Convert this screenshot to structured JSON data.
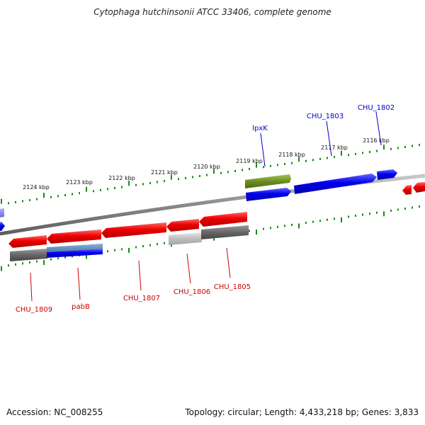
{
  "header": {
    "title": "Cytophaga hutchinsonii ATCC 33406, complete genome"
  },
  "footer": {
    "accession_text": "Accession: NC_008255",
    "summary_text": "Topology: circular; Length: 4,433,218 bp; Genes: 3,833"
  },
  "colors": {
    "forward_gene": "#0000ee",
    "reverse_gene": "#ee0000",
    "pseudo_or_other": "#6a6a6a",
    "rna_gene": "#6e8e22",
    "tick": "#1a8a1a",
    "backbone": "#888888"
  },
  "upper_scale": {
    "ticks": [
      {
        "label": "2124 kbp"
      },
      {
        "label": "2123 kbp"
      },
      {
        "label": "2122 kbp"
      },
      {
        "label": "2121 kbp"
      },
      {
        "label": "2120 kbp"
      },
      {
        "label": "2119 kbp"
      },
      {
        "label": "2118 kbp"
      },
      {
        "label": "2117 kbp"
      },
      {
        "label": "2116 kbp"
      }
    ]
  },
  "gene_labels": {
    "upper": [
      {
        "text": "lpxK",
        "color": "#0000cc"
      },
      {
        "text": "CHU_1803",
        "color": "#0000cc"
      },
      {
        "text": "CHU_1802",
        "color": "#0000cc"
      }
    ],
    "lower": [
      {
        "text": "CHU_1809",
        "color": "#cc0000"
      },
      {
        "text": "pabB",
        "color": "#cc0000"
      },
      {
        "text": "CHU_1807",
        "color": "#cc0000"
      },
      {
        "text": "CHU_1806",
        "color": "#cc0000"
      },
      {
        "text": "CHU_1805",
        "color": "#cc0000"
      }
    ]
  }
}
